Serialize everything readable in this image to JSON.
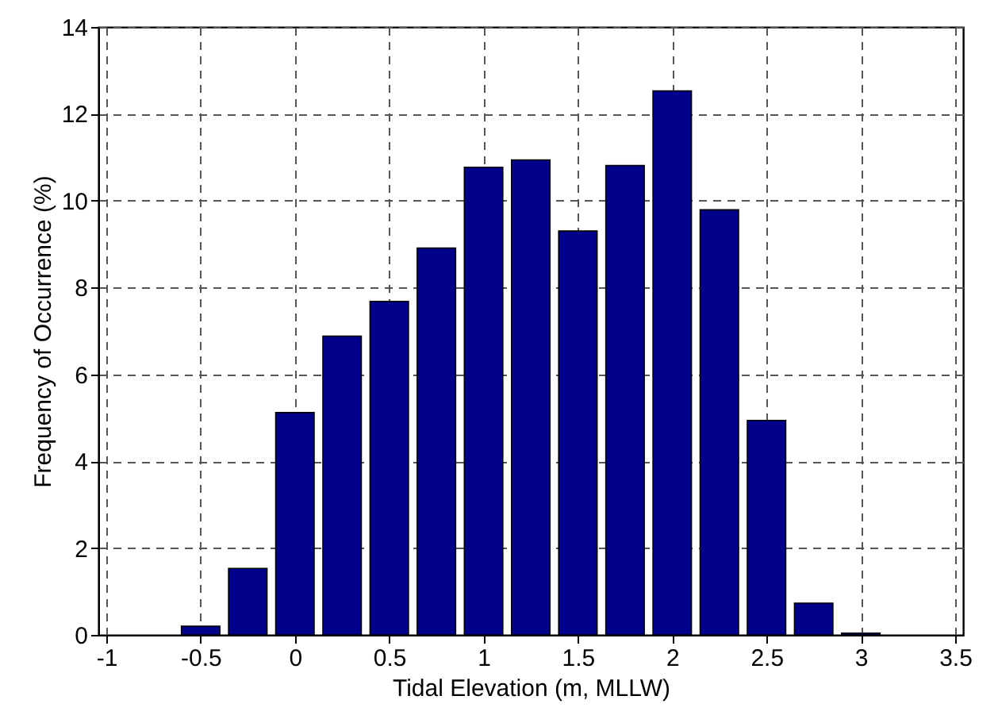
{
  "chart_data": {
    "type": "bar",
    "xlabel": "Tidal Elevation (m, MLLW)",
    "ylabel": "Frequency of Occurrence (%)",
    "x": [
      -0.5,
      -0.25,
      0,
      0.25,
      0.5,
      0.75,
      1.0,
      1.25,
      1.5,
      1.75,
      2.0,
      2.25,
      2.5,
      2.75,
      3.0
    ],
    "values": [
      0.2,
      1.53,
      5.12,
      6.88,
      7.68,
      8.91,
      10.77,
      10.94,
      9.3,
      10.81,
      12.53,
      9.79,
      4.94,
      0.73,
      0.04
    ],
    "color": "#00008b",
    "xlim": [
      -1,
      3.5
    ],
    "xticks": [
      -1,
      -0.5,
      0,
      0.5,
      1,
      1.5,
      2,
      2.5,
      3,
      3.5
    ],
    "ylim": [
      0,
      14
    ],
    "yticks": [
      0,
      2,
      4,
      6,
      8,
      10,
      12,
      14
    ],
    "grid": true
  }
}
